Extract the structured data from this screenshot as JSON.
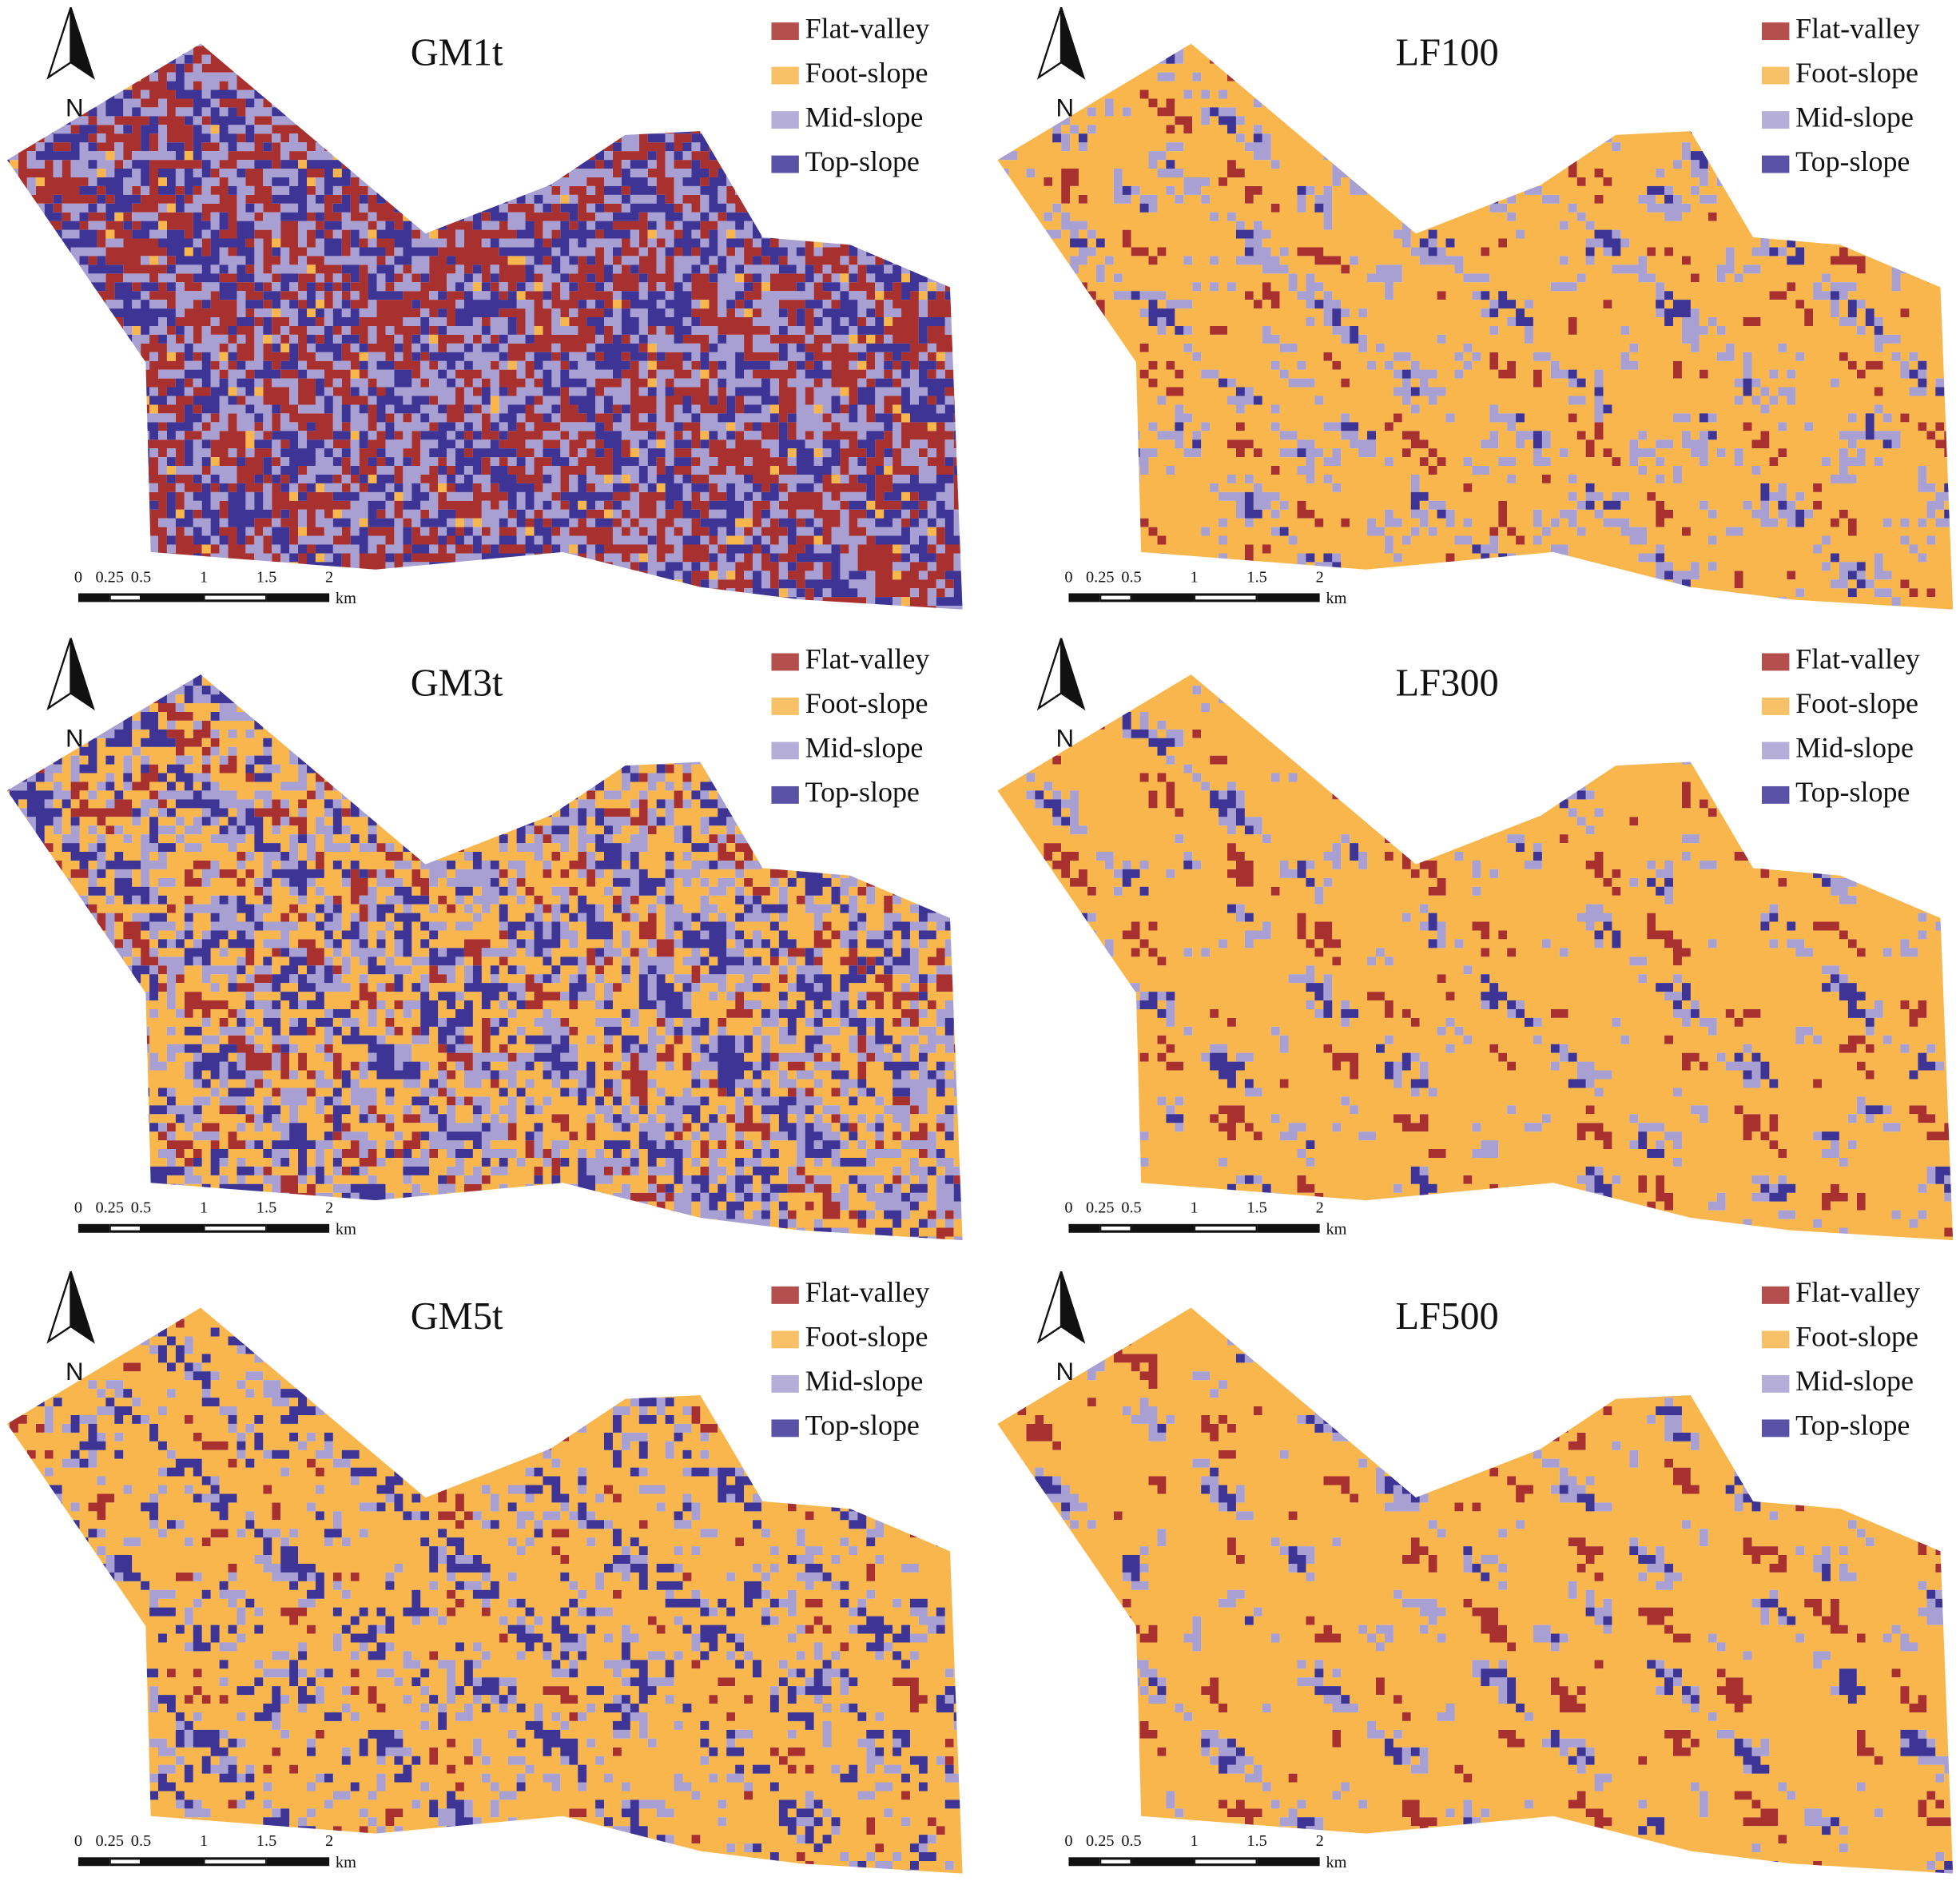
{
  "panels": [
    {
      "title": "GM1t"
    },
    {
      "title": "LF100"
    },
    {
      "title": "GM3t"
    },
    {
      "title": "LF300"
    },
    {
      "title": "GM5t"
    },
    {
      "title": "LF500"
    }
  ],
  "legend": [
    {
      "label": "Flat-valley",
      "color": "#a8302e"
    },
    {
      "label": "Foot-slope",
      "color": "#f8b64c"
    },
    {
      "label": "Mid-slope",
      "color": "#a8a0d2"
    },
    {
      "label": "Top-slope",
      "color": "#3d3496"
    }
  ],
  "north": "N",
  "scale_bar": {
    "labels": [
      "0",
      "0.25",
      "0.5",
      "1",
      "1.5",
      "2"
    ],
    "unit": "km"
  }
}
